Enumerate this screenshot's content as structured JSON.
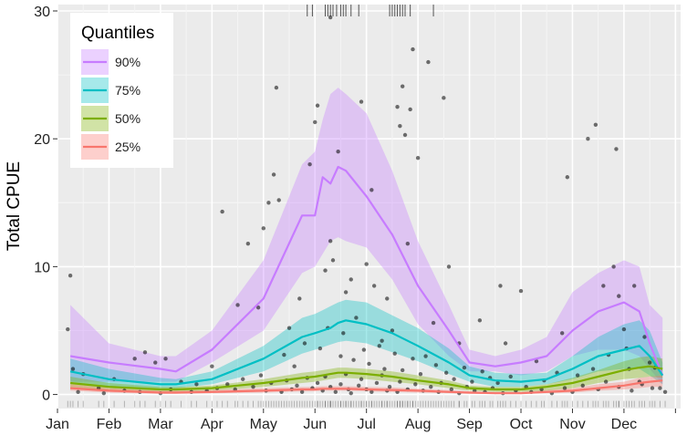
{
  "chart_data": {
    "type": "line",
    "title": "",
    "xlabel": "",
    "ylabel": "Total CPUE",
    "xlim": [
      0,
      12.1
    ],
    "ylim": [
      -1.1,
      30.5
    ],
    "x_tick_labels": [
      "Jan",
      "Feb",
      "Mar",
      "Apr",
      "May",
      "Jun",
      "Jul",
      "Aug",
      "Sep",
      "Oct",
      "Nov",
      "Dec"
    ],
    "x_tick_positions": [
      0,
      1,
      2,
      3,
      4,
      5,
      6,
      7,
      8,
      9,
      10,
      11,
      12
    ],
    "y_ticks": [
      0,
      10,
      20,
      30
    ],
    "grid": true,
    "legend": {
      "title": "Quantiles",
      "position": "top-left"
    },
    "x": [
      0.25,
      1,
      2,
      2.3,
      3,
      4,
      4.75,
      5,
      5.15,
      5.3,
      5.45,
      5.6,
      6,
      6.5,
      7,
      7.6,
      8,
      8.5,
      9,
      9.5,
      10,
      10.5,
      11,
      11.3,
      11.5,
      11.75
    ],
    "series": [
      {
        "name": "90%",
        "color": "#C77CFF",
        "ribbon_color": "#C77CFF",
        "values": [
          3.0,
          2.5,
          2.0,
          1.8,
          3.5,
          7.5,
          14.0,
          14.0,
          17.0,
          16.5,
          17.8,
          17.5,
          15.5,
          12.5,
          8.5,
          5.0,
          2.5,
          2.2,
          2.5,
          3.0,
          5.0,
          6.5,
          7.2,
          6.5,
          4.0,
          1.5
        ],
        "lower": [
          1.0,
          1.0,
          1.0,
          1.0,
          2.5,
          5.0,
          9.5,
          10.0,
          11.0,
          12.0,
          12.3,
          12.0,
          11.5,
          9.0,
          5.5,
          3.0,
          1.8,
          1.8,
          1.5,
          1.8,
          3.0,
          3.5,
          3.5,
          3.0,
          2.0,
          0.8
        ],
        "upper": [
          7.0,
          4.0,
          3.0,
          3.0,
          5.0,
          10.5,
          18.0,
          19.0,
          21.5,
          23.5,
          24.0,
          23.5,
          22.0,
          17.5,
          12.0,
          7.0,
          3.5,
          3.0,
          3.5,
          4.5,
          8.0,
          9.5,
          10.5,
          10.0,
          7.0,
          6.0
        ]
      },
      {
        "name": "75%",
        "color": "#00BFC4",
        "ribbon_color": "#00BFC4",
        "values": [
          1.8,
          1.2,
          0.8,
          0.8,
          1.2,
          2.8,
          4.5,
          4.8,
          5.0,
          5.2,
          5.6,
          5.8,
          5.5,
          4.8,
          3.8,
          2.5,
          1.5,
          1.1,
          1.0,
          1.2,
          2.0,
          3.0,
          3.5,
          3.8,
          3.0,
          1.5
        ],
        "lower": [
          1.0,
          0.6,
          0.5,
          0.5,
          0.8,
          1.8,
          3.2,
          3.5,
          3.7,
          3.9,
          4.1,
          4.2,
          4.0,
          3.3,
          2.6,
          1.6,
          1.0,
          0.6,
          0.6,
          0.8,
          1.2,
          1.8,
          2.0,
          2.0,
          1.5,
          0.8
        ],
        "upper": [
          2.8,
          2.0,
          1.3,
          1.2,
          1.8,
          3.8,
          6.0,
          6.3,
          6.6,
          6.9,
          7.2,
          7.4,
          7.2,
          6.2,
          5.2,
          3.6,
          2.2,
          1.7,
          1.6,
          1.7,
          3.0,
          4.5,
          5.5,
          5.8,
          5.0,
          2.5
        ]
      },
      {
        "name": "50%",
        "color": "#7CAE00",
        "ribbon_color": "#7CAE00",
        "values": [
          0.9,
          0.6,
          0.4,
          0.4,
          0.5,
          0.9,
          1.3,
          1.4,
          1.5,
          1.6,
          1.7,
          1.7,
          1.6,
          1.4,
          1.1,
          0.8,
          0.5,
          0.4,
          0.4,
          0.6,
          0.9,
          1.4,
          1.9,
          2.1,
          2.2,
          2.0
        ],
        "lower": [
          0.5,
          0.3,
          0.2,
          0.2,
          0.3,
          0.6,
          0.9,
          1.0,
          1.1,
          1.2,
          1.3,
          1.3,
          1.2,
          1.0,
          0.8,
          0.5,
          0.3,
          0.2,
          0.2,
          0.3,
          0.5,
          0.9,
          1.2,
          1.3,
          1.4,
          1.3
        ],
        "upper": [
          1.4,
          0.9,
          0.6,
          0.6,
          0.7,
          1.2,
          1.7,
          1.8,
          1.9,
          2.0,
          2.1,
          2.1,
          2.0,
          1.8,
          1.5,
          1.1,
          0.7,
          0.6,
          0.6,
          0.8,
          1.3,
          1.9,
          2.6,
          2.9,
          3.0,
          2.8
        ]
      },
      {
        "name": "25%",
        "color": "#F8766D",
        "ribbon_color": "#F8766D",
        "values": [
          0.5,
          0.3,
          0.15,
          0.15,
          0.2,
          0.3,
          0.4,
          0.4,
          0.45,
          0.45,
          0.45,
          0.45,
          0.4,
          0.35,
          0.3,
          0.2,
          0.15,
          0.1,
          0.1,
          0.2,
          0.3,
          0.5,
          0.7,
          0.9,
          1.0,
          1.1
        ],
        "lower": [
          0.3,
          0.15,
          0.05,
          0.05,
          0.1,
          0.15,
          0.25,
          0.25,
          0.3,
          0.3,
          0.3,
          0.3,
          0.25,
          0.2,
          0.15,
          0.1,
          0.05,
          0.05,
          0.05,
          0.1,
          0.15,
          0.3,
          0.4,
          0.5,
          0.6,
          0.6
        ],
        "upper": [
          0.8,
          0.5,
          0.3,
          0.3,
          0.35,
          0.5,
          0.6,
          0.6,
          0.65,
          0.65,
          0.65,
          0.65,
          0.6,
          0.55,
          0.45,
          0.35,
          0.25,
          0.2,
          0.2,
          0.35,
          0.5,
          0.8,
          1.0,
          1.3,
          1.4,
          1.5
        ]
      }
    ],
    "scatter": [
      [
        0.25,
        9.3
      ],
      [
        0.2,
        5.1
      ],
      [
        0.3,
        2.0
      ],
      [
        0.5,
        1.6
      ],
      [
        0.8,
        0.5
      ],
      [
        1.1,
        1.2
      ],
      [
        1.5,
        2.8
      ],
      [
        1.7,
        3.3
      ],
      [
        1.9,
        2.5
      ],
      [
        2.1,
        2.8
      ],
      [
        2.4,
        1.0
      ],
      [
        2.7,
        0.8
      ],
      [
        3.0,
        2.2
      ],
      [
        3.2,
        14.3
      ],
      [
        3.5,
        7.0
      ],
      [
        3.7,
        11.8
      ],
      [
        3.9,
        6.8
      ],
      [
        4.0,
        13.0
      ],
      [
        4.1,
        15.0
      ],
      [
        4.2,
        17.2
      ],
      [
        4.3,
        15.2
      ],
      [
        4.25,
        24.0
      ],
      [
        4.5,
        5.2
      ],
      [
        4.7,
        7.5
      ],
      [
        4.9,
        18.0
      ],
      [
        5.0,
        21.3
      ],
      [
        5.05,
        22.6
      ],
      [
        5.2,
        9.7
      ],
      [
        5.3,
        12.0
      ],
      [
        5.3,
        29.5
      ],
      [
        5.35,
        10.5
      ],
      [
        5.45,
        19.0
      ],
      [
        5.6,
        8.0
      ],
      [
        5.7,
        9.0
      ],
      [
        5.8,
        6.0
      ],
      [
        5.9,
        22.9
      ],
      [
        6.0,
        10.2
      ],
      [
        6.1,
        16.0
      ],
      [
        6.15,
        8.5
      ],
      [
        6.3,
        4.2
      ],
      [
        6.4,
        7.5
      ],
      [
        6.5,
        5.0
      ],
      [
        6.6,
        22.5
      ],
      [
        6.65,
        21.0
      ],
      [
        6.7,
        24.1
      ],
      [
        6.75,
        20.3
      ],
      [
        6.8,
        11.8
      ],
      [
        6.85,
        22.3
      ],
      [
        6.9,
        27.0
      ],
      [
        7.0,
        18.5
      ],
      [
        7.2,
        26.0
      ],
      [
        7.3,
        5.6
      ],
      [
        7.5,
        23.2
      ],
      [
        7.6,
        10.0
      ],
      [
        7.8,
        4.0
      ],
      [
        8.2,
        5.8
      ],
      [
        8.4,
        1.3
      ],
      [
        8.6,
        8.5
      ],
      [
        8.7,
        4.0
      ],
      [
        9.0,
        8.1
      ],
      [
        9.3,
        2.6
      ],
      [
        9.8,
        4.8
      ],
      [
        9.9,
        17.0
      ],
      [
        10.3,
        20.0
      ],
      [
        10.45,
        21.1
      ],
      [
        10.6,
        8.5
      ],
      [
        10.8,
        10.0
      ],
      [
        10.85,
        19.2
      ],
      [
        10.9,
        7.7
      ],
      [
        11.0,
        5.1
      ],
      [
        11.1,
        2.0
      ],
      [
        11.2,
        8.5
      ],
      [
        11.3,
        1.0
      ],
      [
        11.5,
        2.5
      ],
      [
        11.7,
        0.5
      ],
      [
        4.4,
        3.1
      ],
      [
        4.6,
        2.2
      ],
      [
        4.8,
        4.0
      ],
      [
        5.1,
        3.6
      ],
      [
        5.25,
        5.2
      ],
      [
        5.5,
        3.0
      ],
      [
        5.55,
        4.8
      ],
      [
        5.75,
        2.7
      ],
      [
        5.95,
        3.5
      ],
      [
        6.05,
        2.4
      ],
      [
        6.25,
        3.8
      ],
      [
        6.35,
        2.0
      ],
      [
        6.55,
        3.2
      ],
      [
        6.7,
        1.9
      ],
      [
        6.9,
        2.8
      ],
      [
        7.05,
        1.6
      ],
      [
        7.15,
        3.0
      ],
      [
        7.35,
        2.3
      ],
      [
        7.55,
        1.7
      ],
      [
        7.7,
        1.2
      ],
      [
        7.9,
        2.1
      ],
      [
        8.05,
        1.0
      ],
      [
        8.25,
        1.8
      ],
      [
        8.55,
        0.9
      ],
      [
        8.8,
        1.4
      ],
      [
        9.1,
        0.6
      ],
      [
        9.45,
        1.1
      ],
      [
        9.7,
        1.7
      ],
      [
        10.1,
        1.5
      ],
      [
        10.4,
        2.0
      ],
      [
        10.7,
        3.1
      ],
      [
        11.05,
        3.6
      ],
      [
        11.4,
        4.5
      ],
      [
        11.6,
        2.1
      ],
      [
        0.4,
        0.2
      ],
      [
        0.9,
        0.1
      ],
      [
        1.3,
        0.3
      ],
      [
        1.6,
        0.2
      ],
      [
        2.0,
        0.1
      ],
      [
        2.2,
        0.4
      ],
      [
        2.6,
        0.2
      ],
      [
        2.9,
        0.3
      ],
      [
        3.1,
        0.5
      ],
      [
        3.3,
        0.8
      ],
      [
        3.45,
        0.4
      ],
      [
        3.6,
        1.2
      ],
      [
        3.8,
        0.6
      ],
      [
        3.95,
        1.5
      ],
      [
        4.05,
        0.3
      ],
      [
        4.15,
        0.9
      ],
      [
        4.35,
        0.2
      ],
      [
        4.45,
        1.1
      ],
      [
        4.55,
        0.4
      ],
      [
        4.65,
        0.7
      ],
      [
        4.75,
        0.2
      ],
      [
        4.85,
        1.3
      ],
      [
        4.95,
        0.5
      ],
      [
        5.05,
        0.9
      ],
      [
        5.15,
        0.3
      ],
      [
        5.2,
        1.4
      ],
      [
        5.3,
        0.6
      ],
      [
        5.4,
        0.2
      ],
      [
        5.5,
        0.8
      ],
      [
        5.6,
        1.6
      ],
      [
        5.65,
        0.4
      ],
      [
        5.7,
        0.1
      ],
      [
        5.85,
        0.7
      ],
      [
        5.9,
        1.2
      ],
      [
        6.0,
        0.4
      ],
      [
        6.1,
        0.2
      ],
      [
        6.2,
        0.9
      ],
      [
        6.3,
        1.5
      ],
      [
        6.4,
        0.3
      ],
      [
        6.45,
        0.6
      ],
      [
        6.6,
        0.2
      ],
      [
        6.65,
        1.0
      ],
      [
        6.8,
        0.4
      ],
      [
        6.95,
        0.8
      ],
      [
        7.1,
        0.3
      ],
      [
        7.25,
        0.6
      ],
      [
        7.4,
        0.2
      ],
      [
        7.45,
        0.9
      ],
      [
        7.65,
        0.4
      ],
      [
        7.8,
        0.1
      ],
      [
        7.95,
        0.6
      ],
      [
        8.1,
        0.3
      ],
      [
        8.3,
        0.2
      ],
      [
        8.45,
        0.5
      ],
      [
        8.65,
        0.1
      ],
      [
        8.9,
        0.3
      ],
      [
        9.2,
        0.2
      ],
      [
        9.4,
        0.4
      ],
      [
        9.6,
        0.1
      ],
      [
        9.85,
        0.5
      ],
      [
        10.0,
        0.2
      ],
      [
        10.2,
        0.7
      ],
      [
        10.5,
        0.4
      ],
      [
        10.65,
        1.0
      ],
      [
        10.9,
        0.6
      ],
      [
        11.15,
        0.3
      ],
      [
        11.35,
        0.8
      ],
      [
        11.55,
        0.5
      ],
      [
        11.8,
        0.2
      ]
    ],
    "rug_top_x": [
      4.85,
      4.95,
      5.2,
      5.25,
      5.3,
      5.35,
      5.42,
      5.5,
      5.55,
      5.6,
      5.7,
      5.85,
      6.45,
      6.5,
      6.55,
      6.6,
      6.65,
      6.7,
      6.75,
      6.85,
      7.3
    ]
  }
}
